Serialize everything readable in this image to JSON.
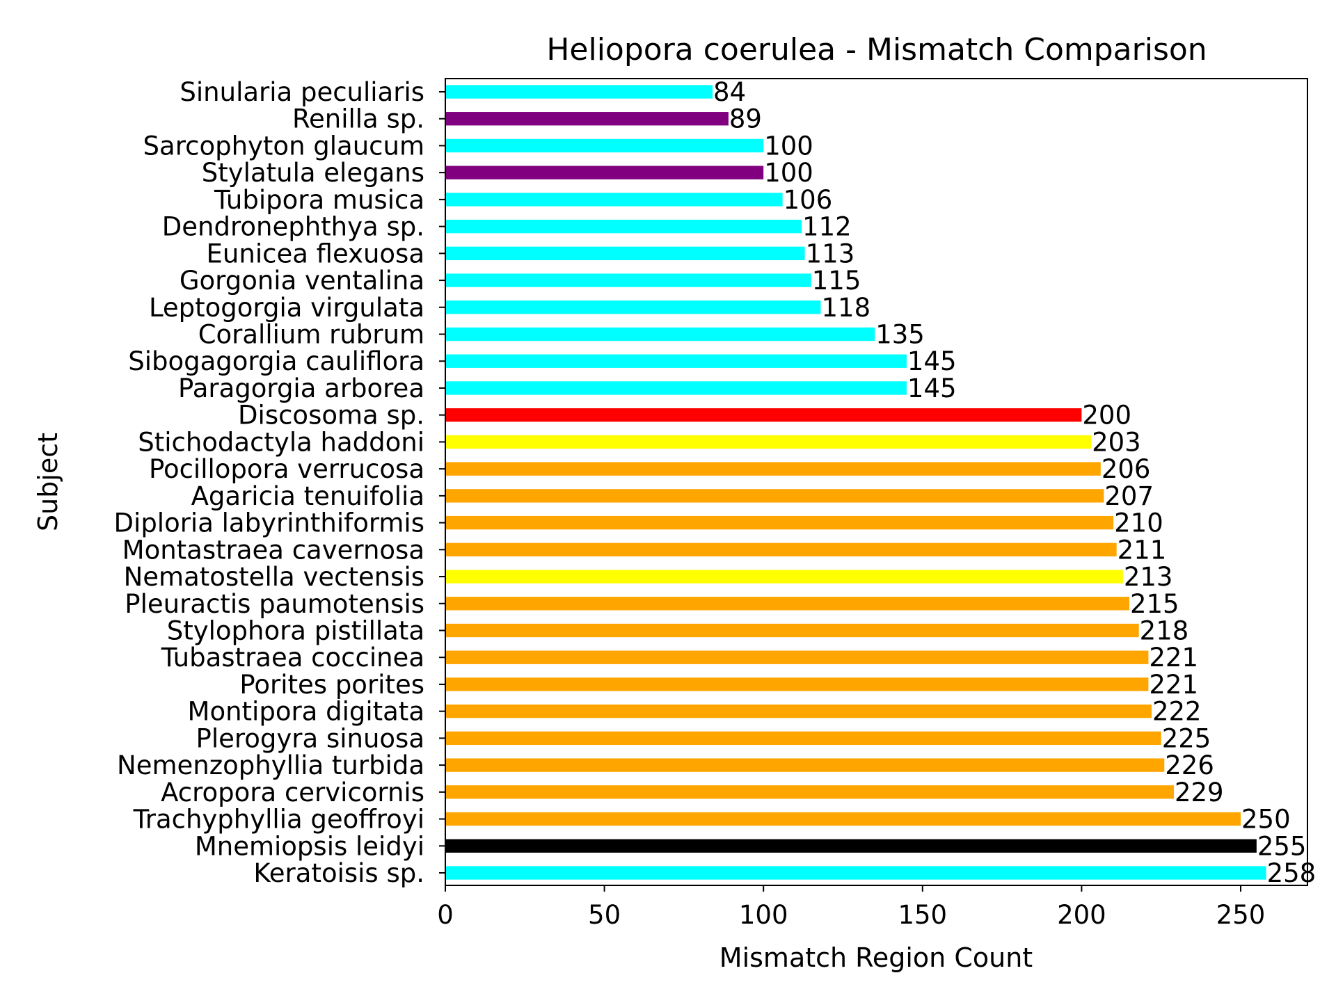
{
  "chart_data": {
    "type": "bar",
    "orientation": "horizontal",
    "title": "Heliopora coerulea - Mismatch Comparison",
    "xlabel": "Mismatch Region Count",
    "ylabel": "Subject",
    "xlim": [
      0,
      271
    ],
    "xticks": [
      0,
      50,
      100,
      150,
      200,
      250
    ],
    "xtick_labels": [
      "0",
      "50",
      "100",
      "150",
      "200",
      "250"
    ],
    "grid": false,
    "legend": "none",
    "categories": [
      "Sinularia peculiaris",
      "Renilla sp.",
      "Sarcophyton glaucum",
      "Stylatula elegans",
      "Tubipora musica",
      "Dendronephthya sp.",
      "Eunicea flexuosa",
      "Gorgonia ventalina",
      "Leptogorgia virgulata",
      "Corallium rubrum",
      "Sibogagorgia cauliflora",
      "Paragorgia arborea",
      "Discosoma sp.",
      "Stichodactyla haddoni",
      "Pocillopora verrucosa",
      "Agaricia tenuifolia",
      "Diploria labyrinthiformis",
      "Montastraea cavernosa",
      "Nematostella vectensis",
      "Pleuractis paumotensis",
      "Stylophora pistillata",
      "Tubastraea coccinea",
      "Porites porites",
      "Montipora digitata",
      "Plerogyra sinuosa",
      "Nemenzophyllia turbida",
      "Acropora cervicornis",
      "Trachyphyllia geoffroyi",
      "Mnemiopsis leidyi",
      "Keratoisis sp."
    ],
    "values": [
      84,
      89,
      100,
      100,
      106,
      112,
      113,
      115,
      118,
      135,
      145,
      145,
      200,
      203,
      206,
      207,
      210,
      211,
      213,
      215,
      218,
      221,
      221,
      222,
      225,
      226,
      229,
      250,
      255,
      258
    ],
    "value_labels": [
      "84",
      "89",
      "100",
      "100",
      "106",
      "112",
      "113",
      "115",
      "118",
      "135",
      "145",
      "145",
      "200",
      "203",
      "206",
      "207",
      "210",
      "211",
      "213",
      "215",
      "218",
      "221",
      "221",
      "222",
      "225",
      "226",
      "229",
      "250",
      "255",
      "258"
    ],
    "bar_colors": [
      "#00ffff",
      "#800080",
      "#00ffff",
      "#800080",
      "#00ffff",
      "#00ffff",
      "#00ffff",
      "#00ffff",
      "#00ffff",
      "#00ffff",
      "#00ffff",
      "#00ffff",
      "#ff0000",
      "#ffff00",
      "#ffa500",
      "#ffa500",
      "#ffa500",
      "#ffa500",
      "#ffff00",
      "#ffa500",
      "#ffa500",
      "#ffa500",
      "#ffa500",
      "#ffa500",
      "#ffa500",
      "#ffa500",
      "#ffa500",
      "#ffa500",
      "#000000",
      "#00ffff"
    ]
  }
}
